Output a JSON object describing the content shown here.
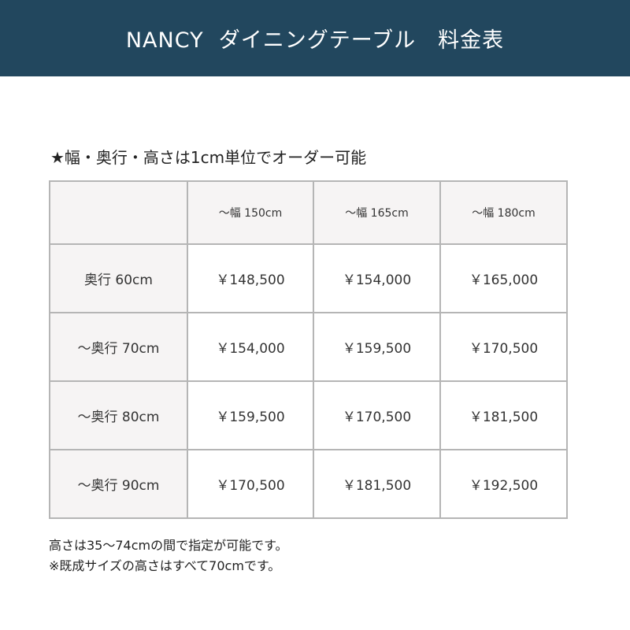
{
  "title": "NANCY  ダイニングテーブル　料金表",
  "note": "★幅・奥行・高さは1cm単位でオーダー可能",
  "table": {
    "columns": [
      "",
      "～幅 150cm",
      "～幅 165cm",
      "～幅 180cm"
    ],
    "rows": [
      {
        "label": "奥行  60cm",
        "prices": [
          "￥148,500",
          "￥154,000",
          "￥165,000"
        ]
      },
      {
        "label": "～奥行 70cm",
        "prices": [
          "￥154,000",
          "￥159,500",
          "￥170,500"
        ]
      },
      {
        "label": "～奥行 80cm",
        "prices": [
          "￥159,500",
          "￥170,500",
          "￥181,500"
        ]
      },
      {
        "label": "～奥行 90cm",
        "prices": [
          "￥170,500",
          "￥181,500",
          "￥192,500"
        ]
      }
    ]
  },
  "footer": [
    "高さは35～74cmの間で指定が可能です。",
    "※既成サイズの高さはすべて70cmです。"
  ]
}
